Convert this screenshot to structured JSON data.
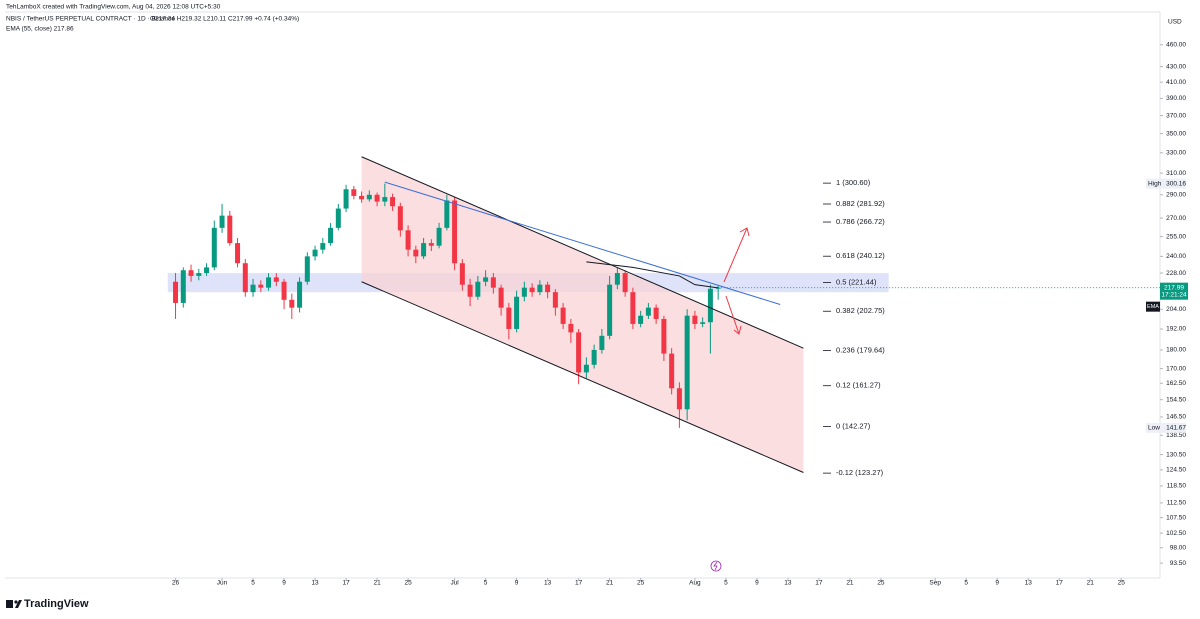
{
  "header": {
    "credit": "TehLamboX created with TradingView.com, Aug 04, 2026 12:08 UTC+5:30",
    "symbol": "NBIS / TetherUS PERPETUAL CONTRACT · 1D · Binance",
    "ohlc": "O217.34 H219.32 L210.11 C217.99 +0.74 (+0.34%)",
    "ema": "EMA (55, close) 217.86",
    "currency": "USD",
    "brand": "TradingView"
  },
  "chart_data": {
    "type": "candlestick",
    "log_scale": true,
    "x": [
      "2026-05-26",
      "2026-05-27",
      "2026-05-28",
      "2026-05-29",
      "2026-05-30",
      "2026-05-31",
      "2026-06-01",
      "2026-06-02",
      "2026-06-03",
      "2026-06-04",
      "2026-06-05",
      "2026-06-06",
      "2026-06-07",
      "2026-06-08",
      "2026-06-09",
      "2026-06-10",
      "2026-06-11",
      "2026-06-12",
      "2026-06-13",
      "2026-06-14",
      "2026-06-15",
      "2026-06-16",
      "2026-06-17",
      "2026-06-18",
      "2026-06-19",
      "2026-06-20",
      "2026-06-21",
      "2026-06-22",
      "2026-06-23",
      "2026-06-24",
      "2026-06-25",
      "2026-06-26",
      "2026-06-27",
      "2026-06-28",
      "2026-06-29",
      "2026-06-30",
      "2026-07-01",
      "2026-07-02",
      "2026-07-03",
      "2026-07-04",
      "2026-07-05",
      "2026-07-06",
      "2026-07-07",
      "2026-07-08",
      "2026-07-09",
      "2026-07-10",
      "2026-07-11",
      "2026-07-12",
      "2026-07-13",
      "2026-07-14",
      "2026-07-15",
      "2026-07-16",
      "2026-07-17",
      "2026-07-18",
      "2026-07-19",
      "2026-07-20",
      "2026-07-21",
      "2026-07-22",
      "2026-07-23",
      "2026-07-24",
      "2026-07-25",
      "2026-07-26",
      "2026-07-27",
      "2026-07-28",
      "2026-07-29",
      "2026-07-30",
      "2026-07-31",
      "2026-08-01",
      "2026-08-02",
      "2026-08-03",
      "2026-08-04"
    ],
    "series": [
      {
        "up_color": "#089981",
        "down_color": "#f23645",
        "open": [
          222,
          208,
          230,
          226,
          228,
          232,
          262,
          272,
          250,
          235,
          215,
          220,
          218,
          225,
          222,
          210,
          205,
          222,
          240,
          245,
          250,
          262,
          278,
          295,
          289,
          286,
          290,
          284,
          288,
          280,
          260,
          245,
          240,
          250,
          248,
          262,
          285,
          235,
          220,
          212,
          222,
          225,
          218,
          205,
          192,
          212,
          218,
          215,
          220,
          215,
          205,
          195,
          190,
          168,
          172,
          180,
          188,
          220,
          228,
          215,
          195,
          200,
          205,
          198,
          178,
          160,
          150,
          200,
          195,
          196,
          217.34
        ],
        "high": [
          228,
          232,
          234,
          231,
          235,
          268,
          282,
          276,
          254,
          238,
          224,
          223,
          228,
          228,
          224,
          214,
          225,
          243,
          248,
          254,
          266,
          282,
          299,
          298,
          293,
          294,
          292,
          300.16,
          291,
          283,
          264,
          248,
          254,
          253,
          266,
          290,
          288,
          238,
          224,
          226,
          230,
          228,
          220,
          208,
          216,
          222,
          221,
          223,
          222,
          217,
          208,
          198,
          192,
          176,
          183,
          192,
          226,
          232,
          230,
          218,
          203,
          208,
          207,
          200,
          181,
          163,
          204,
          203,
          199,
          220,
          219.32
        ],
        "low": [
          198,
          205,
          222,
          223,
          226,
          230,
          258,
          248,
          232,
          212,
          212,
          215,
          216,
          219,
          204,
          198,
          202,
          220,
          237,
          242,
          248,
          260,
          275,
          286,
          283,
          284,
          280,
          280,
          276,
          255,
          240,
          235,
          238,
          244,
          246,
          260,
          230,
          216,
          206,
          210,
          219,
          214,
          200,
          186,
          190,
          209,
          212,
          213,
          211,
          200,
          192,
          184,
          162,
          165,
          170,
          178,
          186,
          217,
          212,
          192,
          193,
          198,
          195,
          174,
          157,
          141.67,
          145,
          192,
          193,
          178,
          210.11
        ],
        "close": [
          208,
          230,
          226,
          228,
          232,
          262,
          272,
          250,
          235,
          215,
          220,
          218,
          225,
          222,
          210,
          205,
          222,
          240,
          245,
          250,
          262,
          278,
          295,
          289,
          286,
          290,
          284,
          288,
          280,
          260,
          245,
          240,
          250,
          248,
          262,
          285,
          235,
          220,
          212,
          222,
          225,
          218,
          205,
          192,
          212,
          218,
          215,
          220,
          215,
          205,
          195,
          190,
          168,
          172,
          180,
          188,
          220,
          228,
          215,
          195,
          200,
          205,
          198,
          178,
          160,
          150,
          200,
          195,
          196,
          217.25,
          217.99
        ]
      }
    ],
    "ema_line": {
      "color": "#131722",
      "x": [
        "2026-07-18",
        "2026-07-24",
        "2026-07-30",
        "2026-08-01",
        "2026-08-04"
      ],
      "values": [
        236,
        232,
        226,
        220,
        217.86
      ]
    },
    "trend_line": {
      "color": "#3d6fd6",
      "x": [
        "2026-06-22",
        "2026-08-12"
      ],
      "values": [
        301.5,
        207
      ]
    },
    "channel": {
      "color": "#f8d3d5",
      "x": [
        "2026-06-19",
        "2026-08-15"
      ],
      "upper": [
        326,
        181
      ],
      "lower": [
        222,
        123.5
      ]
    },
    "zone": {
      "color": "#d6dcf7",
      "x": [
        "2026-05-25",
        "2026-08-26"
      ],
      "range": [
        215,
        228
      ]
    },
    "fib_levels": [
      {
        "label": "1 (300.60)",
        "price": 300.6
      },
      {
        "label": "0.882 (281.92)",
        "price": 281.92
      },
      {
        "label": "0.786 (266.72)",
        "price": 266.72
      },
      {
        "label": "0.618 (240.12)",
        "price": 240.12
      },
      {
        "label": "0.5 (221.44)",
        "price": 221.44
      },
      {
        "label": "0.382 (202.75)",
        "price": 202.75
      },
      {
        "label": "0.236 (179.64)",
        "price": 179.64
      },
      {
        "label": "0.12 (161.27)",
        "price": 161.27
      },
      {
        "label": "0 (142.27)",
        "price": 142.27
      },
      {
        "label": "-0.12 (123.27)",
        "price": 123.27
      }
    ],
    "high_tag": {
      "label": "High",
      "value": 300.16
    },
    "low_tag": {
      "label": "Low",
      "value": 141.67
    },
    "last_price": {
      "value": 217.99,
      "countdown": "17:21:24",
      "color": "#089981"
    },
    "ema_tag": "EMA",
    "xlim": [
      "2026-05-04",
      "2026-09-30"
    ],
    "ylim": [
      89.3,
      504
    ],
    "xticks": [
      {
        "value": "2026-05-26",
        "label": "26"
      },
      {
        "value": "2026-06-01",
        "label": "Jun"
      },
      {
        "value": "2026-06-05",
        "label": "5"
      },
      {
        "value": "2026-06-09",
        "label": "9"
      },
      {
        "value": "2026-06-13",
        "label": "13"
      },
      {
        "value": "2026-06-17",
        "label": "17"
      },
      {
        "value": "2026-06-21",
        "label": "21"
      },
      {
        "value": "2026-06-25",
        "label": "25"
      },
      {
        "value": "2026-07-01",
        "label": "Jul"
      },
      {
        "value": "2026-07-05",
        "label": "5"
      },
      {
        "value": "2026-07-09",
        "label": "9"
      },
      {
        "value": "2026-07-13",
        "label": "13"
      },
      {
        "value": "2026-07-17",
        "label": "17"
      },
      {
        "value": "2026-07-21",
        "label": "21"
      },
      {
        "value": "2026-07-25",
        "label": "25"
      },
      {
        "value": "2026-08-01",
        "label": "Aug"
      },
      {
        "value": "2026-08-05",
        "label": "5"
      },
      {
        "value": "2026-08-09",
        "label": "9"
      },
      {
        "value": "2026-08-13",
        "label": "13"
      },
      {
        "value": "2026-08-17",
        "label": "17"
      },
      {
        "value": "2026-08-21",
        "label": "21"
      },
      {
        "value": "2026-08-25",
        "label": "25"
      },
      {
        "value": "2026-09-01",
        "label": "Sep"
      },
      {
        "value": "2026-09-05",
        "label": "5"
      },
      {
        "value": "2026-09-09",
        "label": "9"
      },
      {
        "value": "2026-09-13",
        "label": "13"
      },
      {
        "value": "2026-09-17",
        "label": "17"
      },
      {
        "value": "2026-09-21",
        "label": "21"
      },
      {
        "value": "2026-09-25",
        "label": "25"
      }
    ],
    "yticks": [
      {
        "value": 460,
        "label": "460.00"
      },
      {
        "value": 430,
        "label": "430.00"
      },
      {
        "value": 410,
        "label": "410.00"
      },
      {
        "value": 390,
        "label": "390.00"
      },
      {
        "value": 370,
        "label": "370.00"
      },
      {
        "value": 350,
        "label": "350.00"
      },
      {
        "value": 330,
        "label": "330.00"
      },
      {
        "value": 310,
        "label": "310.00"
      },
      {
        "value": 290,
        "label": "290.00"
      },
      {
        "value": 270,
        "label": "270.00"
      },
      {
        "value": 255,
        "label": "255.00"
      },
      {
        "value": 240,
        "label": "240.00"
      },
      {
        "value": 228,
        "label": "228.00"
      },
      {
        "value": 204,
        "label": "204.00"
      },
      {
        "value": 192,
        "label": "192.00"
      },
      {
        "value": 180,
        "label": "180.00"
      },
      {
        "value": 170,
        "label": "170.00"
      },
      {
        "value": 162.5,
        "label": "162.50"
      },
      {
        "value": 154.5,
        "label": "154.50"
      },
      {
        "value": 146.5,
        "label": "146.50"
      },
      {
        "value": 138.5,
        "label": "138.50"
      },
      {
        "value": 130.5,
        "label": "130.50"
      },
      {
        "value": 124.5,
        "label": "124.50"
      },
      {
        "value": 118.5,
        "label": "118.50"
      },
      {
        "value": 112.5,
        "label": "112.50"
      },
      {
        "value": 107.5,
        "label": "107.50"
      },
      {
        "value": 102.5,
        "label": "102.50"
      },
      {
        "value": 98,
        "label": "98.00"
      },
      {
        "value": 93.5,
        "label": "93.50"
      }
    ]
  }
}
